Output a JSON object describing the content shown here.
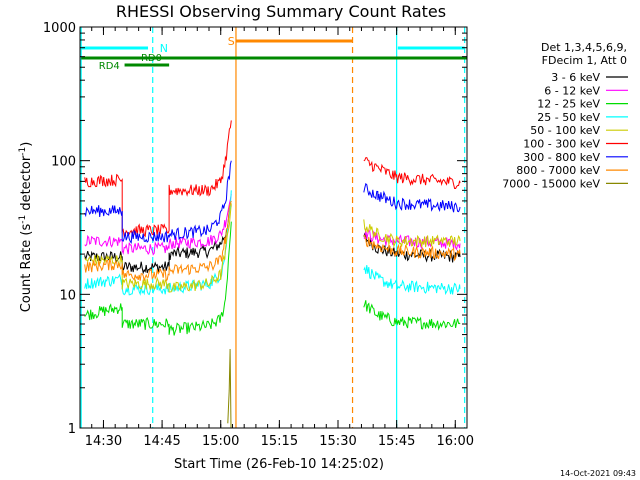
{
  "chart_data": {
    "type": "line",
    "title": "RHESSI Observing Summary Count Rates",
    "xlabel": "Start Time (26-Feb-10 14:25:02)",
    "ylabel_main": "Count Rate (s",
    "ylabel_sup1": "-1",
    "ylabel_mid": " detector",
    "ylabel_sup2": "-1",
    "ylabel_end": ")",
    "yscale": "log",
    "ylim": [
      1,
      1000
    ],
    "xlim_minutes": [
      14.4,
      16.05
    ],
    "x_ticks": [
      {
        "label": "14:30",
        "minute": 14.5
      },
      {
        "label": "14:45",
        "minute": 14.75
      },
      {
        "label": "15:00",
        "minute": 15.0
      },
      {
        "label": "15:15",
        "minute": 15.25
      },
      {
        "label": "15:30",
        "minute": 15.5
      },
      {
        "label": "15:45",
        "minute": 15.75
      },
      {
        "label": "16:00",
        "minute": 16.0
      }
    ],
    "y_ticks": [
      {
        "label": "1",
        "value": 1
      },
      {
        "label": "10",
        "value": 10
      },
      {
        "label": "100",
        "value": 100
      },
      {
        "label": "1000",
        "value": 1000
      }
    ],
    "legend_header": [
      "Det 1,3,4,5,6,9,",
      "FDecim 1, Att 0"
    ],
    "legend_placement": "right",
    "series": [
      {
        "name": "3 - 6 keV",
        "color": "#000000",
        "segments": [
          [
            [
              14.42,
              19
            ],
            [
              14.58,
              19
            ],
            [
              14.58,
              16
            ],
            [
              14.78,
              16
            ],
            [
              14.78,
              20
            ],
            [
              14.95,
              21
            ],
            [
              15.0,
              24
            ],
            [
              15.02,
              28
            ],
            [
              15.045,
              46
            ]
          ],
          [
            [
              15.61,
              27
            ],
            [
              15.67,
              22
            ],
            [
              15.75,
              20
            ],
            [
              16.02,
              19
            ]
          ]
        ]
      },
      {
        "name": "6 - 12 keV",
        "color": "#ff00ff",
        "segments": [
          [
            [
              14.42,
              25
            ],
            [
              14.58,
              25
            ],
            [
              14.58,
              22
            ],
            [
              14.78,
              22
            ],
            [
              14.78,
              24
            ],
            [
              14.95,
              25
            ],
            [
              15.0,
              28
            ],
            [
              15.02,
              35
            ],
            [
              15.045,
              56
            ]
          ],
          [
            [
              15.61,
              29
            ],
            [
              15.67,
              26
            ],
            [
              15.75,
              25
            ],
            [
              16.02,
              24
            ]
          ]
        ]
      },
      {
        "name": "12 - 25 keV",
        "color": "#00dd00",
        "segments": [
          [
            [
              14.42,
              7
            ],
            [
              14.58,
              8
            ],
            [
              14.58,
              6
            ],
            [
              14.78,
              6
            ],
            [
              14.78,
              5.4
            ],
            [
              14.95,
              5.8
            ],
            [
              15.0,
              6.5
            ],
            [
              15.02,
              9
            ],
            [
              15.045,
              35
            ]
          ],
          [
            [
              15.61,
              8.5
            ],
            [
              15.67,
              7
            ],
            [
              15.75,
              6.2
            ],
            [
              16.02,
              6
            ]
          ]
        ]
      },
      {
        "name": "25 - 50 keV",
        "color": "#00ffff",
        "segments": [
          [
            [
              14.42,
              12
            ],
            [
              14.58,
              13
            ],
            [
              14.58,
              11
            ],
            [
              14.78,
              11
            ],
            [
              14.78,
              11
            ],
            [
              14.95,
              12
            ],
            [
              15.0,
              14
            ],
            [
              15.02,
              20
            ],
            [
              15.045,
              60
            ]
          ],
          [
            [
              15.61,
              16
            ],
            [
              15.67,
              13
            ],
            [
              15.75,
              11.5
            ],
            [
              16.02,
              11
            ]
          ]
        ]
      },
      {
        "name": "50 - 100 keV",
        "color": "#cccc00",
        "segments": [
          [
            [
              14.42,
              18
            ],
            [
              14.58,
              18
            ],
            [
              14.58,
              12
            ],
            [
              14.78,
              12
            ],
            [
              14.78,
              11
            ],
            [
              14.95,
              12
            ],
            [
              15.0,
              14
            ],
            [
              15.02,
              20
            ],
            [
              15.045,
              48
            ]
          ],
          [
            [
              15.61,
              33
            ],
            [
              15.67,
              28
            ],
            [
              15.75,
              25
            ],
            [
              16.02,
              25
            ]
          ]
        ]
      },
      {
        "name": "100 - 300 keV",
        "color": "#ff0000",
        "segments": [
          [
            [
              14.42,
              70
            ],
            [
              14.58,
              72
            ],
            [
              14.58,
              30
            ],
            [
              14.78,
              30
            ],
            [
              14.78,
              60
            ],
            [
              14.95,
              60
            ],
            [
              15.0,
              70
            ],
            [
              15.02,
              100
            ],
            [
              15.045,
              200
            ]
          ],
          [
            [
              15.61,
              100
            ],
            [
              15.67,
              88
            ],
            [
              15.75,
              75
            ],
            [
              16.02,
              68
            ]
          ]
        ]
      },
      {
        "name": "300 - 800 keV",
        "color": "#0000ff",
        "segments": [
          [
            [
              14.42,
              42
            ],
            [
              14.58,
              42
            ],
            [
              14.58,
              27
            ],
            [
              14.78,
              27
            ],
            [
              14.78,
              28
            ],
            [
              14.95,
              30
            ],
            [
              15.0,
              38
            ],
            [
              15.02,
              50
            ],
            [
              15.045,
              100
            ]
          ],
          [
            [
              15.61,
              62
            ],
            [
              15.67,
              55
            ],
            [
              15.75,
              48
            ],
            [
              16.02,
              45
            ]
          ]
        ]
      },
      {
        "name": "800 - 7000 keV",
        "color": "#ff8800",
        "segments": [
          [
            [
              14.42,
              16
            ],
            [
              14.58,
              17
            ],
            [
              14.58,
              14
            ],
            [
              14.78,
              14
            ],
            [
              14.78,
              15
            ],
            [
              14.95,
              16
            ],
            [
              15.0,
              18
            ],
            [
              15.02,
              26
            ],
            [
              15.045,
              50
            ]
          ],
          [
            [
              15.61,
              26
            ],
            [
              15.67,
              23
            ],
            [
              15.75,
              21
            ],
            [
              16.02,
              20
            ]
          ]
        ]
      },
      {
        "name": "7000 - 15000 keV",
        "color": "#888800",
        "segments": [
          [
            [
              15.03,
              1.0
            ],
            [
              15.036,
              1.9
            ],
            [
              15.04,
              3.9
            ],
            [
              15.044,
              1.0
            ]
          ]
        ]
      }
    ],
    "annotations": {
      "n_label": "N",
      "s_label": "S",
      "rd0_label": "RD0",
      "rd4_label": "RD4",
      "timestamp": "14-Oct-2021 09:43"
    },
    "colors": {
      "night": "#00ffff",
      "saa": "#ff8800",
      "decimation": "#008800"
    }
  }
}
